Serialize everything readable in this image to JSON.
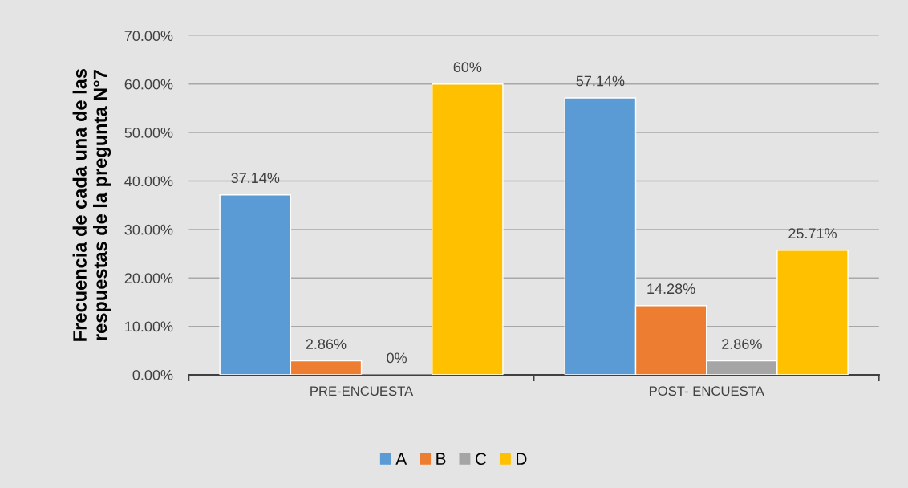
{
  "chart_data": {
    "type": "bar",
    "ylabel": "Frecuencia de cada una de las\nrespuestas de la pregunta N°7",
    "categories": [
      "PRE-ENCUESTA",
      "POST- ENCUESTA"
    ],
    "series": [
      {
        "name": "A",
        "color": "#5b9bd5",
        "values": [
          37.14,
          57.14
        ],
        "value_labels": [
          "37.14%",
          "57.14%"
        ]
      },
      {
        "name": "B",
        "color": "#ed7d31",
        "values": [
          2.86,
          14.28
        ],
        "value_labels": [
          "2.86%",
          "14.28%"
        ]
      },
      {
        "name": "C",
        "color": "#a5a5a5",
        "values": [
          0,
          2.86
        ],
        "value_labels": [
          "0%",
          "2.86%"
        ]
      },
      {
        "name": "D",
        "color": "#ffc000",
        "values": [
          60,
          25.71
        ],
        "value_labels": [
          "60%",
          "25.71%"
        ]
      }
    ],
    "ylim": [
      0,
      70
    ],
    "yticks": [
      {
        "value": 0,
        "label": "0.00%"
      },
      {
        "value": 10,
        "label": "10.00%"
      },
      {
        "value": 20,
        "label": "20.00%"
      },
      {
        "value": 30,
        "label": "30.00%"
      },
      {
        "value": 40,
        "label": "40.00%"
      },
      {
        "value": 50,
        "label": "50.00%"
      },
      {
        "value": 60,
        "label": "60.00%"
      },
      {
        "value": 70,
        "label": "70.00%"
      }
    ],
    "grid": "y",
    "legend": "bottom"
  }
}
